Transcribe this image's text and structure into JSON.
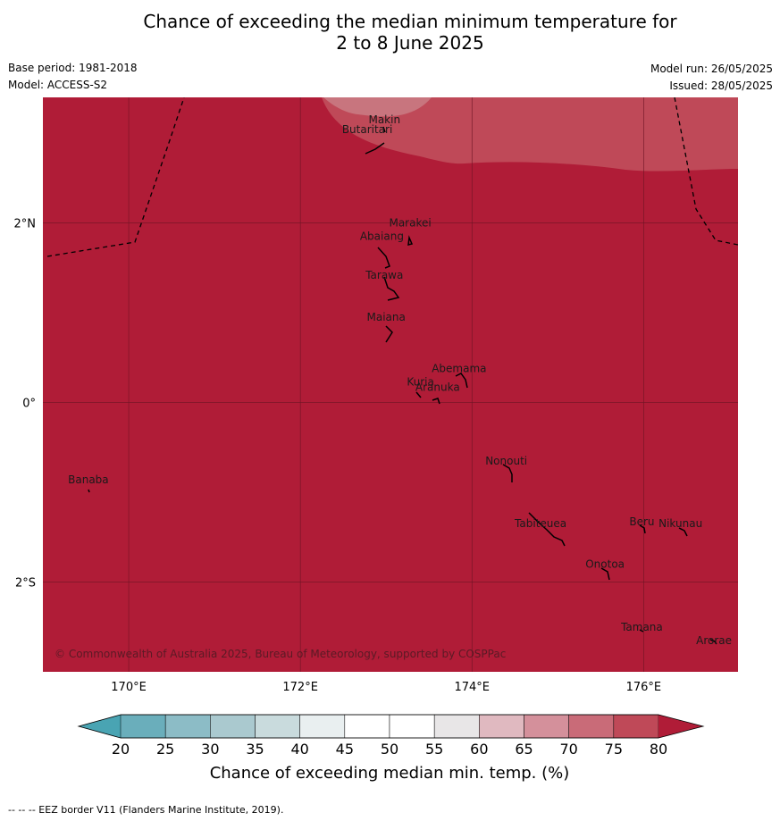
{
  "title": {
    "line1": "Chance of exceeding the median minimum temperature for",
    "line2": "2 to 8 June 2025"
  },
  "meta": {
    "base_period": "Base period: 1981-2018",
    "model": "Model: ACCESS-S2",
    "model_run": "Model run: 26/05/2025",
    "issued": "Issued: 28/05/2025"
  },
  "map": {
    "lon_range": [
      169,
      177.1
    ],
    "lat_range": [
      -3.0,
      3.4
    ],
    "lon_ticks": [
      {
        "value": 170,
        "label": "170°E"
      },
      {
        "value": 172,
        "label": "172°E"
      },
      {
        "value": 174,
        "label": "174°E"
      },
      {
        "value": 176,
        "label": "176°E"
      }
    ],
    "lat_ticks": [
      {
        "value": 2,
        "label": "2°N"
      },
      {
        "value": 0,
        "label": "0°"
      },
      {
        "value": -2,
        "label": "2°S"
      }
    ],
    "background_class_color": "#b01c37",
    "places": [
      {
        "name": "Makin",
        "lon": 172.98,
        "lat": 3.15
      },
      {
        "name": "Butaritari",
        "lon": 172.78,
        "lat": 3.04
      },
      {
        "name": "Marakei",
        "lon": 173.28,
        "lat": 2.0
      },
      {
        "name": "Abaiang",
        "lon": 172.95,
        "lat": 1.85
      },
      {
        "name": "Tarawa",
        "lon": 172.98,
        "lat": 1.42
      },
      {
        "name": "Maiana",
        "lon": 173.0,
        "lat": 0.95
      },
      {
        "name": "Abemama",
        "lon": 173.85,
        "lat": 0.38
      },
      {
        "name": "Kuria",
        "lon": 173.4,
        "lat": 0.23
      },
      {
        "name": "Aranuka",
        "lon": 173.6,
        "lat": 0.17
      },
      {
        "name": "Nonouti",
        "lon": 174.4,
        "lat": -0.65
      },
      {
        "name": "Banaba",
        "lon": 169.53,
        "lat": -0.86
      },
      {
        "name": "Tabiteuea",
        "lon": 174.8,
        "lat": -1.35
      },
      {
        "name": "Beru",
        "lon": 175.98,
        "lat": -1.33
      },
      {
        "name": "Nikunau",
        "lon": 176.43,
        "lat": -1.35
      },
      {
        "name": "Onotoa",
        "lon": 175.55,
        "lat": -1.8
      },
      {
        "name": "Tamana",
        "lon": 175.98,
        "lat": -2.5
      },
      {
        "name": "Arorae",
        "lon": 176.82,
        "lat": -2.65
      }
    ],
    "copyright": "© Commonwealth of Australia 2025, Bureau of Meteorology, supported by COSPPac"
  },
  "colorbar": {
    "ticks": [
      "20",
      "25",
      "30",
      "35",
      "40",
      "45",
      "50",
      "55",
      "60",
      "65",
      "70",
      "75",
      "80"
    ],
    "colors": [
      "#6aaebb",
      "#8cbcc6",
      "#aac9cf",
      "#c9dbdd",
      "#e9eff0",
      "#ffffff",
      "#ffffff",
      "#e8e6e7",
      "#e0b9c0",
      "#d4909b",
      "#c96b78",
      "#bf4958"
    ],
    "under_color": "#49a4b3",
    "over_color": "#b01c37",
    "label": "Chance of exceeding median min. temp. (%)"
  },
  "footer": "--  --  -- EEZ border V11 (Flanders Marine Institute, 2019)."
}
